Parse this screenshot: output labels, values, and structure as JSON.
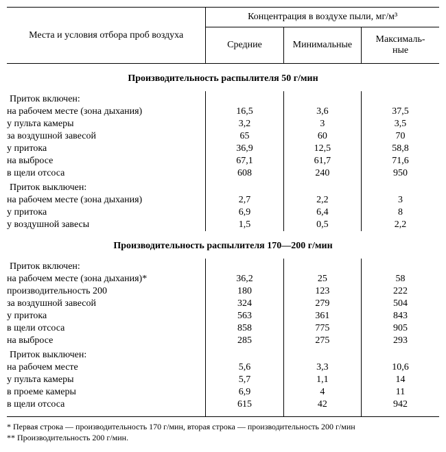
{
  "header": {
    "left_label": "Места и условия отбора проб воздуха",
    "group_label": "Концентрация в воздухе пыли, мг/м³",
    "cols": {
      "avg": "Средние",
      "min": "Минимальные",
      "max": "Максималь-\nные"
    }
  },
  "sections": [
    {
      "title": "Производительность распылителя 50 г/мин",
      "groups": [
        {
          "label": "Приток включен:",
          "rows": [
            {
              "label": "на рабочем месте (зона дыхания)",
              "avg": "16,5",
              "min": "3,6",
              "max": "37,5"
            },
            {
              "label": "у пульта камеры",
              "avg": "3,2",
              "min": "3",
              "max": "3,5"
            },
            {
              "label": "за воздушной завесой",
              "avg": "65",
              "min": "60",
              "max": "70"
            },
            {
              "label": "у притока",
              "avg": "36,9",
              "min": "12,5",
              "max": "58,8"
            },
            {
              "label": "на выбросе",
              "avg": "67,1",
              "min": "61,7",
              "max": "71,6"
            },
            {
              "label": "в щели отсоса",
              "avg": "608",
              "min": "240",
              "max": "950"
            }
          ]
        },
        {
          "label": "Приток выключен:",
          "rows": [
            {
              "label": "на рабочем месте (зона дыхания)",
              "avg": "2,7",
              "min": "2,2",
              "max": "3"
            },
            {
              "label": "у притока",
              "avg": "6,9",
              "min": "6,4",
              "max": "8"
            },
            {
              "label": "у воздушной завесы",
              "avg": "1,5",
              "min": "0,5",
              "max": "2,2"
            }
          ]
        }
      ]
    },
    {
      "title": "Производительность распылителя 170—200 г/мин",
      "groups": [
        {
          "label": "Приток включен:",
          "rows": [
            {
              "label": "на рабочем месте (зона дыхания)*",
              "avg": "36,2",
              "min": "25",
              "max": "58"
            },
            {
              "label": "производительность 200",
              "avg": "180",
              "min": "123",
              "max": "222"
            },
            {
              "label": "за воздушной завесой",
              "avg": "324",
              "min": "279",
              "max": "504"
            },
            {
              "label": "у притока",
              "avg": "563",
              "min": "361",
              "max": "843"
            },
            {
              "label": "в щели отсоса",
              "avg": "858",
              "min": "775",
              "max": "905"
            },
            {
              "label": "на выбросе",
              "avg": "285",
              "min": "275",
              "max": "293"
            }
          ]
        },
        {
          "label": "Приток выключен:",
          "rows": [
            {
              "label": "на рабочем месте",
              "avg": "5,6",
              "min": "3,3",
              "max": "10,6"
            },
            {
              "label": "у пульта камеры",
              "avg": "5,7",
              "min": "1,1",
              "max": "14"
            },
            {
              "label": "в проеме камеры",
              "avg": "6,9",
              "min": "4",
              "max": "11"
            },
            {
              "label": "в щели отсоса",
              "avg": "615",
              "min": "42",
              "max": "942"
            }
          ]
        }
      ]
    }
  ],
  "footnotes": [
    "* Первая строка — производительность 170 г/мин, вторая строка — производительность 200 г/мин",
    "** Производительность 200 г/мин."
  ],
  "style": {
    "col_widths_pct": [
      46,
      18,
      18,
      18
    ],
    "font_size_pt": 14,
    "footnote_font_size_pt": 12,
    "rule_color": "#000000",
    "background": "#ffffff",
    "text_color": "#000000"
  }
}
